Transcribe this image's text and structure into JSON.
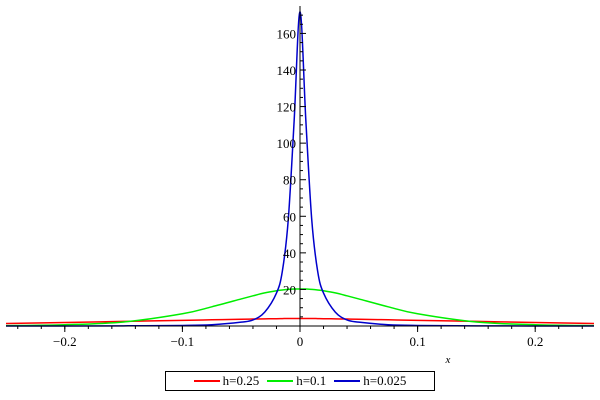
{
  "chart_data": {
    "type": "line",
    "title": "",
    "xlabel": "x",
    "ylabel": "",
    "xlim": [
      -0.25,
      0.25
    ],
    "ylim": [
      0,
      175
    ],
    "x_ticks": [
      -0.2,
      -0.1,
      0,
      0.1,
      0.2
    ],
    "x_tick_labels": [
      "−0.2",
      "−0.1",
      "0",
      "0.1",
      "0.2"
    ],
    "y_ticks": [
      20,
      40,
      60,
      80,
      100,
      120,
      140,
      160
    ],
    "y_tick_labels": [
      "20",
      "40",
      "60",
      "80",
      "100",
      "120",
      "140",
      "160"
    ],
    "grid": false,
    "legend_position": "bottom",
    "x": [
      -0.25,
      -0.2,
      -0.15,
      -0.1,
      -0.075,
      -0.05,
      -0.04,
      -0.03,
      -0.02,
      -0.015,
      -0.01,
      -0.005,
      0,
      0.005,
      0.01,
      0.015,
      0.02,
      0.03,
      0.04,
      0.05,
      0.075,
      0.1,
      0.15,
      0.2,
      0.25
    ],
    "series": [
      {
        "name": "h=0.25",
        "color": "#ff0000",
        "values": [
          1.4,
          1.9,
          2.5,
          3.1,
          3.4,
          3.7,
          3.8,
          3.9,
          4.0,
          4.05,
          4.1,
          4.1,
          4.1,
          4.1,
          4.1,
          4.05,
          4.0,
          3.9,
          3.8,
          3.7,
          3.4,
          3.1,
          2.5,
          1.9,
          1.4
        ]
      },
      {
        "name": "h=0.1",
        "color": "#00ee00",
        "values": [
          0.2,
          0.7,
          2.2,
          6.7,
          10.5,
          14.8,
          16.5,
          18.1,
          19.3,
          19.7,
          20.0,
          20.2,
          20.2,
          20.2,
          20.0,
          19.7,
          19.3,
          18.1,
          16.5,
          14.8,
          10.5,
          6.7,
          2.2,
          0.7,
          0.2
        ]
      },
      {
        "name": "h=0.025",
        "color": "#0000cc",
        "values": [
          0.0,
          0.0,
          0.1,
          0.3,
          0.7,
          2.1,
          3.3,
          7.6,
          18.0,
          30.0,
          58.0,
          112.0,
          172.0,
          112.0,
          58.0,
          30.0,
          18.0,
          7.6,
          3.3,
          2.1,
          0.7,
          0.3,
          0.1,
          0.0,
          0.0
        ]
      }
    ]
  }
}
